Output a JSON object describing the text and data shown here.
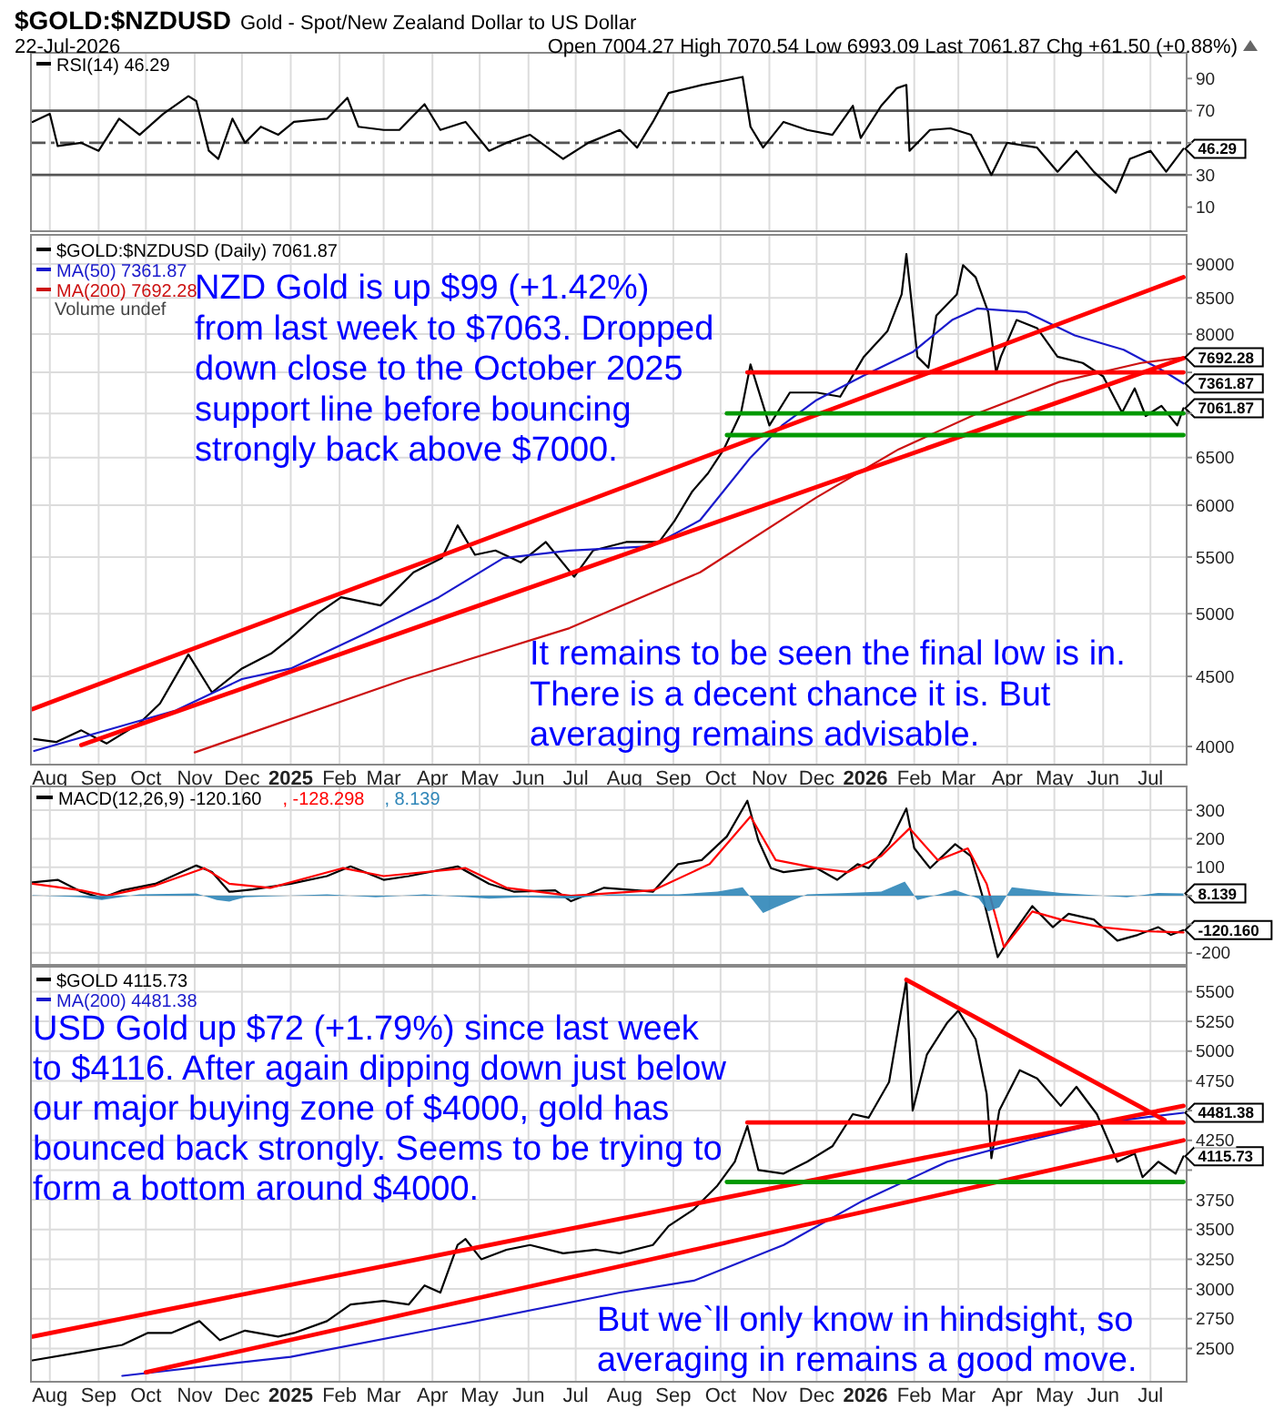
{
  "chart_data": [
    {
      "type": "line",
      "title": "$GOLD:$NZDUSD",
      "subtitle": "Gold - Spot/New Zealand Dollar to US Dollar",
      "annotations": [
        "22-Jul-2026",
        "Open 7004.27  High 7070.54  Low 6993.09  Last 7061.87  Chg +61.50 (+0.88%)",
        {
          "text": "46.29",
          "x": "2026-07-22",
          "y": 46.29
        }
      ],
      "xlim": [
        "2024-07-20",
        "2026-07-24"
      ],
      "ylim": [
        -5,
        106
      ],
      "yticks": [
        10,
        30,
        {
          "value": 50,
          "label": null
        },
        70,
        90
      ],
      "tick_labels": "y",
      "grid": "x",
      "legend": "top left",
      "xticks": [
        "2024-08-01",
        "2024-09-01",
        "2024-10-01",
        "2024-11-01",
        "2024-12-01",
        "2025-01-01",
        "2025-02-01",
        "2025-03-01",
        "2025-04-01",
        "2025-05-01",
        "2025-06-01",
        "2025-07-01",
        "2025-08-01",
        "2025-09-01",
        "2025-10-01",
        "2025-11-01",
        "2025-12-01",
        "2026-01-01",
        "2026-02-01",
        "2026-03-01",
        "2026-04-01",
        "2026-05-01",
        "2026-06-01",
        "2026-07-01"
      ],
      "ref_lines": [
        {
          "axis": "y",
          "value": 70,
          "color": "#555555"
        },
        {
          "axis": "y",
          "value": 30,
          "color": "#555555"
        },
        {
          "axis": "y",
          "value": 50,
          "color": "#555555",
          "line_style": "dashed"
        }
      ],
      "series": [
        {
          "name": "RSI(14) 46.29",
          "color": "#000000",
          "x": [
            "2024-07-21",
            "2024-08-01",
            "2024-08-06",
            "2024-08-21",
            "2024-09-01",
            "2024-09-14",
            "2024-09-27",
            "2024-10-12",
            "2024-10-28",
            "2024-11-02",
            "2024-11-10",
            "2024-11-16",
            "2024-11-25",
            "2024-12-03",
            "2024-12-13",
            "2024-12-24",
            "2025-01-03",
            "2025-01-24",
            "2025-02-06",
            "2025-02-13",
            "2025-03-01",
            "2025-03-11",
            "2025-03-27",
            "2025-04-06",
            "2025-04-22",
            "2025-05-07",
            "2025-05-18",
            "2025-06-02",
            "2025-06-23",
            "2025-07-09",
            "2025-07-29",
            "2025-08-09",
            "2025-08-19",
            "2025-08-29",
            "2025-09-19",
            "2025-10-05",
            "2025-10-15",
            "2025-10-20",
            "2025-10-28",
            "2025-11-10",
            "2025-11-25",
            "2025-12-11",
            "2025-12-24",
            "2025-12-29",
            "2026-01-11",
            "2026-01-21",
            "2026-01-27",
            "2026-01-29",
            "2026-02-11",
            "2026-02-24",
            "2026-03-09",
            "2026-03-17",
            "2026-03-22",
            "2026-04-01",
            "2026-04-20",
            "2026-05-03",
            "2026-05-15",
            "2026-05-26",
            "2026-06-09",
            "2026-06-18",
            "2026-07-01",
            "2026-07-11",
            "2026-07-22"
          ],
          "values": [
            63,
            68,
            48,
            50,
            45,
            65,
            55,
            68,
            79,
            76,
            45,
            40,
            65,
            50,
            60,
            55,
            63,
            65,
            78,
            60,
            58,
            58,
            74,
            58,
            63,
            45,
            50,
            55,
            40,
            50,
            58,
            47,
            63,
            81,
            86,
            89,
            91,
            60,
            47,
            63,
            58,
            55,
            73,
            53,
            73,
            84,
            86,
            45,
            58,
            59,
            55,
            40,
            30,
            50,
            47,
            32,
            45,
            32,
            19,
            40,
            45,
            32,
            46.29
          ]
        }
      ]
    },
    {
      "type": "line",
      "log": "y",
      "annotations": [
        "Volume undef",
        "NZD Gold is up  $99 (+1.42%)\nfrom last week to $7063. Dropped\ndown close to the October 2025\nsupport line before bouncing\nstrongly back above $7000.",
        "It remains to be seen the final low is in.\nThere is a decent chance it is. But\naveraging remains advisable.",
        {
          "text": "7692.28",
          "x": "2026-07-22",
          "y": 7692.28
        },
        {
          "text": "7361.87",
          "x": "2026-07-22",
          "y": 7361.87
        },
        {
          "text": "7061.87",
          "x": "2026-07-22",
          "y": 7061.87
        }
      ],
      "xlim": [
        "2024-07-20",
        "2026-07-24"
      ],
      "ylim": [
        3880,
        9450
      ],
      "yticks": [
        4000,
        4500,
        5000,
        5500,
        6000,
        6500,
        {
          "value": 7000,
          "label": null
        },
        {
          "value": 7500,
          "label": null
        },
        8000,
        8500,
        9000
      ],
      "grid": true,
      "legend": "top left",
      "xticks": [
        {
          "value": "2024-08-01",
          "label": "Aug"
        },
        {
          "value": "2024-09-01",
          "label": "Sep"
        },
        {
          "value": "2024-10-01",
          "label": "Oct"
        },
        {
          "value": "2024-11-01",
          "label": "Nov"
        },
        {
          "value": "2024-12-01",
          "label": "Dec"
        },
        {
          "value": "2025-01-01",
          "label": "2025"
        },
        {
          "value": "2025-02-01",
          "label": "Feb"
        },
        {
          "value": "2025-03-01",
          "label": "Mar"
        },
        {
          "value": "2025-04-01",
          "label": "Apr"
        },
        {
          "value": "2025-05-01",
          "label": "May"
        },
        {
          "value": "2025-06-01",
          "label": "Jun"
        },
        {
          "value": "2025-07-01",
          "label": "Jul"
        },
        {
          "value": "2025-08-01",
          "label": "Aug"
        },
        {
          "value": "2025-09-01",
          "label": "Sep"
        },
        {
          "value": "2025-10-01",
          "label": "Oct"
        },
        {
          "value": "2025-11-01",
          "label": "Nov"
        },
        {
          "value": "2025-12-01",
          "label": "Dec"
        },
        {
          "value": "2026-01-01",
          "label": "2026"
        },
        {
          "value": "2026-02-01",
          "label": "Feb"
        },
        {
          "value": "2026-03-01",
          "label": "Mar"
        },
        {
          "value": "2026-04-01",
          "label": "Apr"
        },
        {
          "value": "2026-05-01",
          "label": "May"
        },
        {
          "value": "2026-06-01",
          "label": "Jun"
        },
        {
          "value": "2026-07-01",
          "label": "Jul"
        }
      ],
      "series": [
        {
          "name": "$GOLD:$NZDUSD (Daily) 7061.87",
          "color": "#000000",
          "x": [
            "2024-07-22",
            "2024-08-05",
            "2024-08-21",
            "2024-09-06",
            "2024-09-27",
            "2024-10-10",
            "2024-10-28",
            "2024-11-12",
            "2024-12-01",
            "2024-12-20",
            "2025-01-01",
            "2025-01-18",
            "2025-02-02",
            "2025-02-27",
            "2025-03-20",
            "2025-04-07",
            "2025-04-17",
            "2025-04-28",
            "2025-05-11",
            "2025-05-27",
            "2025-06-12",
            "2025-06-30",
            "2025-07-12",
            "2025-08-02",
            "2025-08-23",
            "2025-09-02",
            "2025-09-13",
            "2025-09-23",
            "2025-10-03",
            "2025-10-14",
            "2025-10-20",
            "2025-11-01",
            "2025-11-14",
            "2025-12-01",
            "2025-12-16",
            "2025-12-31",
            "2026-01-15",
            "2026-01-24",
            "2026-01-27",
            "2026-02-03",
            "2026-02-10",
            "2026-02-15",
            "2026-02-28",
            "2026-03-04",
            "2026-03-12",
            "2026-03-20",
            "2026-03-25",
            "2026-03-28",
            "2026-04-07",
            "2026-04-20",
            "2026-05-03",
            "2026-05-19",
            "2026-06-01",
            "2026-06-13",
            "2026-06-21",
            "2026-06-28",
            "2026-07-08",
            "2026-07-18",
            "2026-07-22"
          ],
          "values": [
            4050,
            4030,
            4110,
            4020,
            4160,
            4300,
            4670,
            4380,
            4560,
            4680,
            4800,
            5000,
            5140,
            5070,
            5360,
            5490,
            5800,
            5520,
            5560,
            5450,
            5640,
            5320,
            5560,
            5640,
            5640,
            5850,
            6140,
            6330,
            6590,
            7010,
            7600,
            6860,
            7250,
            7250,
            7200,
            7700,
            8040,
            8550,
            9150,
            7700,
            7560,
            8250,
            8550,
            8980,
            8800,
            8300,
            7500,
            7700,
            8190,
            8080,
            7700,
            7620,
            7450,
            7010,
            7300,
            6970,
            7090,
            6860,
            7061.87
          ]
        },
        {
          "name": "MA(50) 7361.87",
          "color": "#1a1acc",
          "x": [
            "2024-07-22",
            "2024-10-20",
            "2024-12-01",
            "2025-01-01",
            "2025-02-18",
            "2025-04-05",
            "2025-05-16",
            "2025-06-27",
            "2025-08-18",
            "2025-09-18",
            "2025-10-20",
            "2025-11-09",
            "2025-12-01",
            "2025-12-31",
            "2026-01-31",
            "2026-02-25",
            "2026-03-13",
            "2026-04-13",
            "2026-05-14",
            "2026-06-14",
            "2026-07-10",
            "2026-07-22"
          ],
          "values": [
            3970,
            4250,
            4480,
            4560,
            4840,
            5140,
            5490,
            5560,
            5600,
            5850,
            6500,
            6860,
            7160,
            7460,
            7760,
            8190,
            8350,
            8300,
            7980,
            7790,
            7510,
            7361.87
          ]
        },
        {
          "name": "MA(200) 7692.28",
          "color": "#cc1111",
          "x": [
            "2024-11-01",
            "2025-03-15",
            "2025-06-27",
            "2025-09-18",
            "2025-12-01",
            "2026-01-22",
            "2026-03-13",
            "2026-05-04",
            "2026-06-25",
            "2026-07-22"
          ],
          "values": [
            3960,
            4480,
            4880,
            5360,
            6080,
            6590,
            7000,
            7380,
            7620,
            7692.28
          ]
        },
        {
          "color": "#ff0000",
          "x": [
            "2024-07-21",
            "2026-07-22"
          ],
          "values": [
            4260,
            8800
          ]
        },
        {
          "color": "#ff0000",
          "x": [
            "2024-08-21",
            "2026-07-22"
          ],
          "values": [
            4010,
            7680
          ]
        },
        {
          "color": "#ff0000",
          "x": [
            "2025-10-18",
            "2026-07-22"
          ],
          "values": [
            7500,
            7500
          ]
        },
        {
          "color": "#009900",
          "x": [
            "2025-10-05",
            "2026-07-22"
          ],
          "values": [
            7000,
            7000
          ]
        },
        {
          "color": "#009900",
          "x": [
            "2025-10-05",
            "2026-07-22"
          ],
          "values": [
            6750,
            6750
          ]
        }
      ]
    },
    {
      "type": "line",
      "annotations": [
        {
          "text": "8.139",
          "x": "2026-07-22",
          "y": 8.139
        },
        {
          "text": "-120.160",
          "x": "2026-07-22",
          "y": -120.16
        }
      ],
      "xlim": [
        "2024-07-20",
        "2026-07-24"
      ],
      "ylim": [
        -242,
        383
      ],
      "yticks": [
        -200,
        {
          "value": -100,
          "label": null
        },
        {
          "value": 0,
          "label": null
        },
        100,
        200,
        300
      ],
      "tick_labels": "y",
      "grid": true,
      "legend": "top left",
      "xticks": [
        "2024-08-01",
        "2024-09-01",
        "2024-10-01",
        "2024-11-01",
        "2024-12-01",
        "2025-01-01",
        "2025-02-01",
        "2025-03-01",
        "2025-04-01",
        "2025-05-01",
        "2025-06-01",
        "2025-07-01",
        "2025-08-01",
        "2025-09-01",
        "2025-10-01",
        "2025-11-01",
        "2025-12-01",
        "2026-01-01",
        "2026-02-01",
        "2026-03-01",
        "2026-04-01",
        "2026-05-01",
        "2026-06-01",
        "2026-07-01"
      ],
      "series": [
        {
          "name": "MACD(12,26,9) -120.160",
          "color": "#000000",
          "x": [
            "2024-07-21",
            "2024-08-06",
            "2024-08-21",
            "2024-09-03",
            "2024-09-16",
            "2024-10-07",
            "2024-11-02",
            "2024-11-12",
            "2024-11-23",
            "2024-12-08",
            "2025-01-01",
            "2025-01-24",
            "2025-02-08",
            "2025-03-01",
            "2025-03-17",
            "2025-04-17",
            "2025-05-07",
            "2025-05-23",
            "2025-06-18",
            "2025-06-28",
            "2025-07-19",
            "2025-08-09",
            "2025-08-19",
            "2025-09-04",
            "2025-09-19",
            "2025-10-05",
            "2025-10-18",
            "2025-10-25",
            "2025-11-02",
            "2025-11-10",
            "2025-12-01",
            "2025-12-14",
            "2025-12-27",
            "2026-01-03",
            "2026-01-16",
            "2026-01-27",
            "2026-02-01",
            "2026-02-11",
            "2026-02-27",
            "2026-03-09",
            "2026-03-17",
            "2026-03-26",
            "2026-04-04",
            "2026-04-17",
            "2026-04-30",
            "2026-05-10",
            "2026-05-26",
            "2026-06-10",
            "2026-06-23",
            "2026-07-06",
            "2026-07-14",
            "2026-07-22"
          ],
          "values": [
            47,
            56,
            14,
            -8,
            19,
            42,
            106,
            83,
            14,
            22,
            42,
            69,
            103,
            56,
            69,
            103,
            42,
            14,
            19,
            -19,
            28,
            19,
            14,
            111,
            125,
            208,
            333,
            194,
            97,
            83,
            97,
            56,
            111,
            97,
            181,
            306,
            167,
            97,
            181,
            139,
            -14,
            -215,
            -137,
            -36,
            -110,
            -63,
            -83,
            -157,
            -137,
            -110,
            -137,
            -120.16
          ]
        },
        {
          "name": ", -128.298",
          "color": "#ff0000",
          "x": [
            "2024-07-21",
            "2024-08-21",
            "2024-09-06",
            "2024-10-07",
            "2024-11-07",
            "2024-11-23",
            "2024-12-19",
            "2025-02-03",
            "2025-03-01",
            "2025-04-22",
            "2025-05-18",
            "2025-06-28",
            "2025-08-19",
            "2025-09-24",
            "2025-10-20",
            "2025-11-05",
            "2025-12-01",
            "2025-12-21",
            "2026-01-11",
            "2026-01-29",
            "2026-02-16",
            "2026-03-07",
            "2026-03-19",
            "2026-03-30",
            "2026-04-17",
            "2026-05-05",
            "2026-05-31",
            "2026-06-26",
            "2026-07-22"
          ],
          "values": [
            42,
            19,
            0,
            36,
            97,
            42,
            28,
            97,
            69,
            97,
            28,
            0,
            19,
            111,
            278,
            125,
            97,
            83,
            139,
            236,
            125,
            166,
            42,
            -180,
            -55,
            -83,
            -110,
            -124,
            -128.298
          ]
        },
        {
          "name": ", 8.139",
          "type": "area",
          "color": "#2f86b8",
          "x": [
            "2024-07-21",
            "2024-08-21",
            "2024-09-03",
            "2024-09-27",
            "2024-11-02",
            "2024-11-15",
            "2024-11-23",
            "2024-12-03",
            "2025-01-24",
            "2025-02-24",
            "2025-03-27",
            "2025-05-07",
            "2025-05-28",
            "2025-06-28",
            "2025-07-24",
            "2025-09-04",
            "2025-09-29",
            "2025-10-15",
            "2025-10-28",
            "2025-11-05",
            "2025-11-25",
            "2025-12-21",
            "2026-01-11",
            "2026-01-26",
            "2026-02-03",
            "2026-02-27",
            "2026-03-14",
            "2026-03-20",
            "2026-03-27",
            "2026-04-04",
            "2026-05-05",
            "2026-06-16",
            "2026-07-06",
            "2026-07-22"
          ],
          "values": [
            2,
            -5,
            -15,
            5,
            8,
            -15,
            -20,
            -5,
            5,
            -5,
            5,
            -10,
            -5,
            -10,
            5,
            5,
            15,
            30,
            -60,
            -40,
            5,
            10,
            15,
            50,
            -15,
            20,
            -10,
            -55,
            -40,
            30,
            10,
            -5,
            10,
            8.139
          ]
        }
      ]
    },
    {
      "type": "line",
      "annotations": [
        "USD Gold up $72 (+1.79%) since last week\nto $4116. After again dipping down just below\nour major buying zone of $4000, gold has\nbounced back strongly. Seems to be trying to\nform a bottom around $4000.",
        "But we`ll only know in hindsight, so\naveraging in remains a good move.",
        {
          "text": "4481.38",
          "x": "2026-07-22",
          "y": 4481.38
        },
        {
          "text": "4115.73",
          "x": "2026-07-22",
          "y": 4115.73
        }
      ],
      "xlim": [
        "2024-07-20",
        "2026-07-24"
      ],
      "ylim": [
        2220,
        5710
      ],
      "yticks": [
        2500,
        2750,
        3000,
        3250,
        3500,
        3750,
        {
          "value": 4000,
          "label": null
        },
        4250,
        {
          "value": 4500,
          "label": null
        },
        4750,
        5000,
        5250,
        5500
      ],
      "grid": true,
      "legend": "top left",
      "xticks": [
        {
          "value": "2024-08-01",
          "label": "Aug"
        },
        {
          "value": "2024-09-01",
          "label": "Sep"
        },
        {
          "value": "2024-10-01",
          "label": "Oct"
        },
        {
          "value": "2024-11-01",
          "label": "Nov"
        },
        {
          "value": "2024-12-01",
          "label": "Dec"
        },
        {
          "value": "2025-01-01",
          "label": "2025"
        },
        {
          "value": "2025-02-01",
          "label": "Feb"
        },
        {
          "value": "2025-03-01",
          "label": "Mar"
        },
        {
          "value": "2025-04-01",
          "label": "Apr"
        },
        {
          "value": "2025-05-01",
          "label": "May"
        },
        {
          "value": "2025-06-01",
          "label": "Jun"
        },
        {
          "value": "2025-07-01",
          "label": "Jul"
        },
        {
          "value": "2025-08-01",
          "label": "Aug"
        },
        {
          "value": "2025-09-01",
          "label": "Sep"
        },
        {
          "value": "2025-10-01",
          "label": "Oct"
        },
        {
          "value": "2025-11-01",
          "label": "Nov"
        },
        {
          "value": "2025-12-01",
          "label": "Dec"
        },
        {
          "value": "2026-01-01",
          "label": "2026"
        },
        {
          "value": "2026-02-01",
          "label": "Feb"
        },
        {
          "value": "2026-03-01",
          "label": "Mar"
        },
        {
          "value": "2026-04-01",
          "label": "Apr"
        },
        {
          "value": "2026-05-01",
          "label": "May"
        },
        {
          "value": "2026-06-01",
          "label": "Jun"
        },
        {
          "value": "2026-07-01",
          "label": "Jul"
        }
      ],
      "series": [
        {
          "name": "$GOLD 4115.73",
          "color": "#000000",
          "x": [
            "2024-07-21",
            "2024-08-21",
            "2024-09-16",
            "2024-10-02",
            "2024-10-17",
            "2024-11-04",
            "2024-11-17",
            "2024-12-03",
            "2024-12-24",
            "2025-01-03",
            "2025-01-24",
            "2025-02-08",
            "2025-03-01",
            "2025-03-17",
            "2025-03-27",
            "2025-04-06",
            "2025-04-17",
            "2025-04-22",
            "2025-05-02",
            "2025-05-18",
            "2025-06-02",
            "2025-06-23",
            "2025-07-14",
            "2025-07-29",
            "2025-08-19",
            "2025-08-29",
            "2025-09-14",
            "2025-09-29",
            "2025-10-10",
            "2025-10-18",
            "2025-10-25",
            "2025-11-10",
            "2025-11-25",
            "2025-12-11",
            "2025-12-24",
            "2026-01-03",
            "2026-01-16",
            "2026-01-27",
            "2026-01-31",
            "2026-02-09",
            "2026-02-22",
            "2026-03-01",
            "2026-03-12",
            "2026-03-19",
            "2026-03-22",
            "2026-03-27",
            "2026-04-09",
            "2026-04-20",
            "2026-05-05",
            "2026-05-15",
            "2026-05-28",
            "2026-06-10",
            "2026-06-21",
            "2026-06-26",
            "2026-07-06",
            "2026-07-17",
            "2026-07-22"
          ],
          "values": [
            2400,
            2470,
            2530,
            2630,
            2630,
            2730,
            2570,
            2650,
            2600,
            2630,
            2730,
            2870,
            2900,
            2870,
            3030,
            2970,
            3370,
            3420,
            3250,
            3330,
            3370,
            3300,
            3330,
            3300,
            3370,
            3530,
            3670,
            3870,
            4070,
            4370,
            4000,
            3970,
            4070,
            4200,
            4470,
            4440,
            4740,
            5600,
            4500,
            4970,
            5240,
            5340,
            5100,
            4640,
            4100,
            4500,
            4840,
            4770,
            4540,
            4700,
            4470,
            4070,
            4140,
            3940,
            4070,
            3970,
            4115.73
          ]
        },
        {
          "name": "MA(200) 4481.38",
          "color": "#1a1acc",
          "x": [
            "2024-09-16",
            "2025-01-01",
            "2025-04-17",
            "2025-07-29",
            "2025-09-14",
            "2025-11-10",
            "2025-12-30",
            "2026-02-22",
            "2026-04-14",
            "2026-06-01",
            "2026-07-22"
          ],
          "values": [
            2270,
            2430,
            2700,
            2970,
            3070,
            3370,
            3740,
            4070,
            4250,
            4400,
            4481.38
          ]
        },
        {
          "color": "#ff0000",
          "x": [
            "2024-07-21",
            "2026-07-22"
          ],
          "values": [
            2600,
            4540
          ]
        },
        {
          "color": "#ff0000",
          "x": [
            "2024-10-01",
            "2026-07-22"
          ],
          "values": [
            2300,
            4250
          ]
        },
        {
          "color": "#ff0000",
          "x": [
            "2025-10-18",
            "2026-07-22"
          ],
          "values": [
            4400,
            4400
          ]
        },
        {
          "color": "#ff0000",
          "x": [
            "2026-01-27",
            "2026-07-10"
          ],
          "values": [
            5600,
            4420
          ]
        },
        {
          "color": "#009900",
          "x": [
            "2025-10-05",
            "2026-07-22"
          ],
          "values": [
            3900,
            3900
          ]
        }
      ]
    }
  ]
}
